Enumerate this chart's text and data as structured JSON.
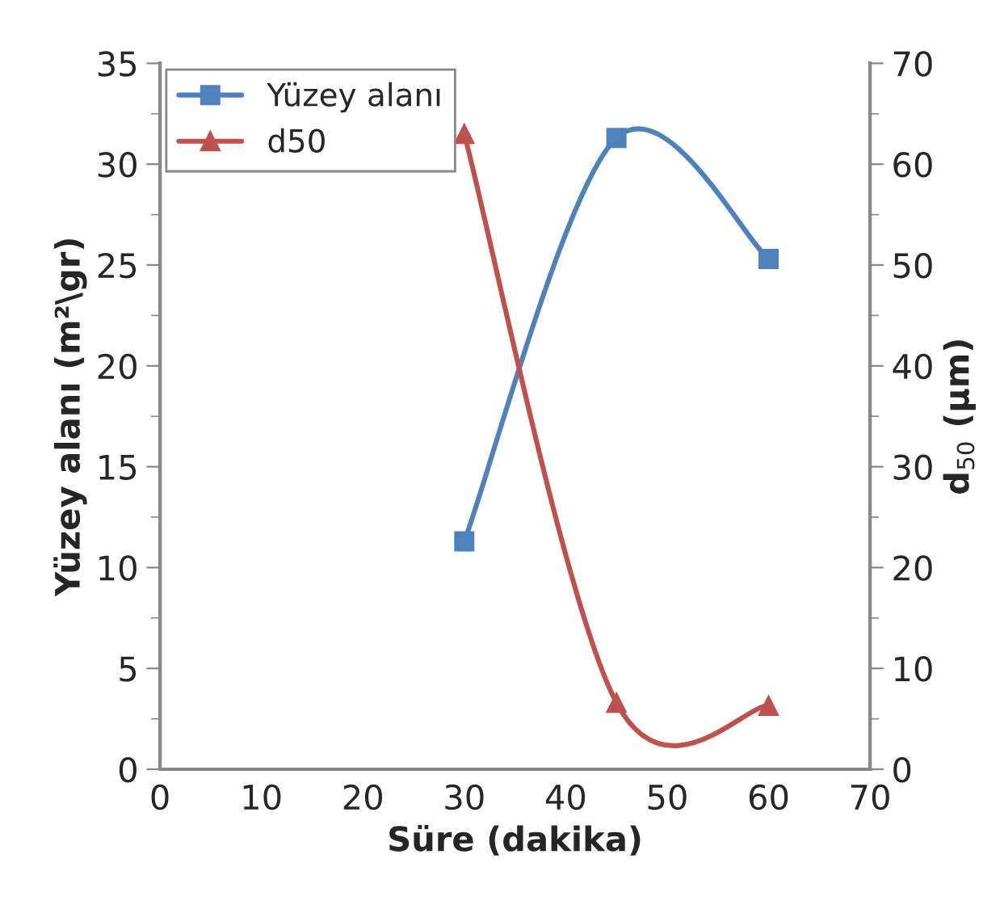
{
  "chart_data": {
    "type": "line",
    "xlabel": "Süre (dakika)",
    "ylabel": "Yüzey alanı (m²\\gr)",
    "y2label": "d$_{50}$ (µm)",
    "x": [
      30,
      45,
      60
    ],
    "series": [
      {
        "name": "Yüzey alanı",
        "color": "#4f81bd",
        "values": [
          11.3,
          31.3,
          25.3
        ],
        "marker": "square"
      },
      {
        "name": "d50",
        "color": "#c0504d",
        "values": [
          63,
          6.6,
          6.3
        ],
        "marker": "triangle",
        "axis": "y2"
      }
    ],
    "xlim": [
      0,
      70
    ],
    "xticks": [
      0,
      10,
      20,
      30,
      40,
      50,
      60,
      70
    ],
    "ylim": [
      0,
      35
    ],
    "yticks": [
      0,
      5,
      10,
      15,
      20,
      25,
      30,
      35
    ],
    "y2lim": [
      0,
      70
    ],
    "y2ticks": [
      0,
      10,
      20,
      30,
      40,
      50,
      60,
      70
    ],
    "grid": false,
    "legend": "top left",
    "line_style": "solid"
  }
}
